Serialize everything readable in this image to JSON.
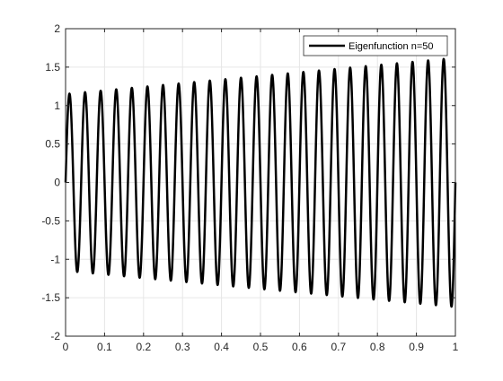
{
  "chart_data": {
    "type": "line",
    "title": "",
    "xlabel": "",
    "ylabel": "",
    "xlim": [
      0,
      1
    ],
    "ylim": [
      -2,
      2
    ],
    "x_ticks": [
      "0",
      "0.1",
      "0.2",
      "0.3",
      "0.4",
      "0.5",
      "0.6",
      "0.7",
      "0.8",
      "0.9",
      "1"
    ],
    "y_ticks": [
      "-2",
      "-1.5",
      "-1",
      "-0.5",
      "0",
      "0.5",
      "1",
      "1.5",
      "2"
    ],
    "grid": true,
    "legend_position": "top-right",
    "series": [
      {
        "name": "Eigenfunction n=50",
        "color": "#000000",
        "model": "y = (1.15 + 0.47*x) * sin(50*pi*x)",
        "x_start": 0,
        "x_end": 1,
        "peak_amplitude_start": 1.15,
        "peak_amplitude_end": 1.62,
        "half_cycles": 50
      }
    ]
  }
}
